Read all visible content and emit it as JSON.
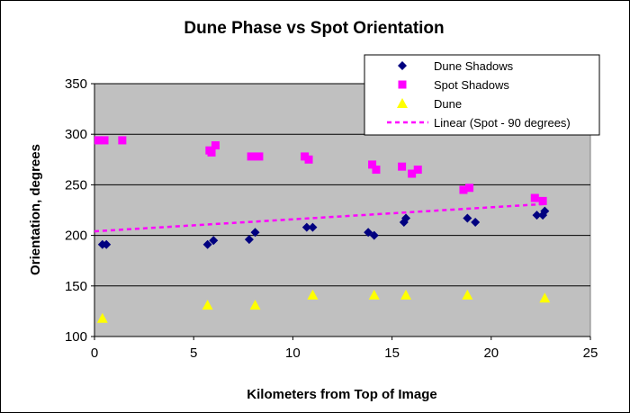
{
  "chart_data": {
    "type": "scatter",
    "title": "Dune Phase vs Spot Orientation",
    "xlabel": "Kilometers from Top of Image",
    "ylabel": "Orientation, degrees",
    "xlim": [
      0,
      25
    ],
    "ylim": [
      100,
      350
    ],
    "xticks": [
      0,
      5,
      10,
      15,
      20,
      25
    ],
    "yticks": [
      100,
      150,
      200,
      250,
      300,
      350
    ],
    "grid": "horizontal",
    "plot_background": "#c0c0c0",
    "legend_position": "top-right",
    "series": [
      {
        "name": "Dune Shadows",
        "marker": "diamond",
        "color": "#000080",
        "points": [
          [
            0.4,
            191
          ],
          [
            0.6,
            191
          ],
          [
            5.7,
            191
          ],
          [
            6.0,
            195
          ],
          [
            7.8,
            196
          ],
          [
            8.1,
            203
          ],
          [
            10.7,
            208
          ],
          [
            11.0,
            208
          ],
          [
            13.8,
            203
          ],
          [
            14.1,
            200
          ],
          [
            15.6,
            213
          ],
          [
            15.7,
            217
          ],
          [
            18.8,
            217
          ],
          [
            19.2,
            213
          ],
          [
            22.3,
            220
          ],
          [
            22.6,
            220
          ],
          [
            22.7,
            224
          ]
        ]
      },
      {
        "name": "Spot Shadows",
        "marker": "square",
        "color": "#ff00ff",
        "points": [
          [
            0.2,
            294
          ],
          [
            0.5,
            294
          ],
          [
            1.4,
            294
          ],
          [
            5.8,
            284
          ],
          [
            5.9,
            282
          ],
          [
            6.1,
            289
          ],
          [
            7.9,
            278
          ],
          [
            8.3,
            278
          ],
          [
            10.6,
            278
          ],
          [
            10.8,
            275
          ],
          [
            14.0,
            270
          ],
          [
            14.2,
            265
          ],
          [
            15.5,
            268
          ],
          [
            16.0,
            261
          ],
          [
            16.3,
            265
          ],
          [
            18.6,
            245
          ],
          [
            18.9,
            247
          ],
          [
            22.2,
            237
          ],
          [
            22.6,
            234
          ]
        ]
      },
      {
        "name": "Dune",
        "marker": "triangle",
        "color": "#ffff00",
        "points": [
          [
            0.4,
            118
          ],
          [
            5.7,
            131
          ],
          [
            8.1,
            131
          ],
          [
            11.0,
            141
          ],
          [
            14.1,
            141
          ],
          [
            15.7,
            141
          ],
          [
            18.8,
            141
          ],
          [
            22.7,
            138
          ]
        ]
      },
      {
        "name": "Linear (Spot - 90 degrees)",
        "type": "line",
        "style": "dashed",
        "color": "#ff00ff",
        "points": [
          [
            0,
            204
          ],
          [
            22.7,
            231
          ]
        ]
      }
    ]
  }
}
